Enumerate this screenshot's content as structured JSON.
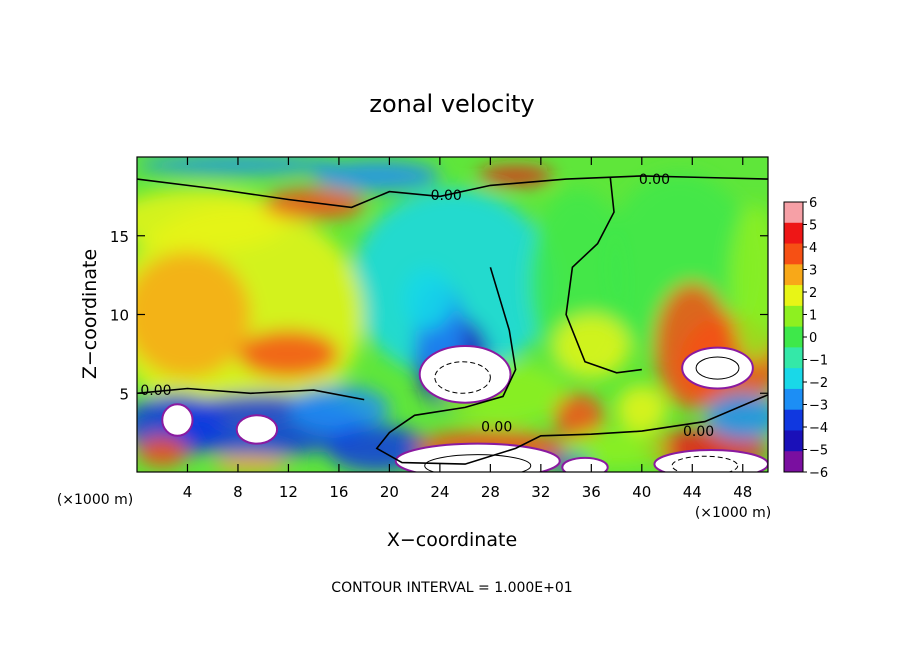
{
  "chart_data": {
    "type": "heatmap",
    "title": "zonal velocity",
    "xlabel": "X−coordinate",
    "ylabel": "Z−coordinate",
    "x_unit_left": "(×1000 m)",
    "x_unit_right": "(×1000 m)",
    "xlim": [
      0,
      50
    ],
    "ylim": [
      0,
      20
    ],
    "x_ticks": [
      4,
      8,
      12,
      16,
      20,
      24,
      28,
      32,
      36,
      40,
      44,
      48
    ],
    "y_ticks": [
      5,
      10,
      15
    ],
    "colorbar": {
      "range": [
        -6,
        6
      ],
      "levels": [
        6,
        5,
        4,
        3,
        2,
        1,
        0,
        -1,
        -2,
        -3,
        -4,
        -5,
        -6
      ],
      "tick_labels": [
        "6",
        "5",
        "4",
        "3",
        "2",
        "1",
        "0",
        "−1",
        "−2",
        "−3",
        "−4",
        "−5",
        "−6"
      ]
    },
    "contour_labels": [
      {
        "text": "0.00",
        "x": 24.5,
        "y": 17.6
      },
      {
        "text": "0.00",
        "x": 41.0,
        "y": 18.6
      },
      {
        "text": "0.00",
        "x": 1.5,
        "y": 5.2
      },
      {
        "text": "0.00",
        "x": 28.5,
        "y": 2.9
      },
      {
        "text": "0.00",
        "x": 44.5,
        "y": 2.6
      }
    ],
    "footer": "CONTOUR INTERVAL = 1.000E+01"
  }
}
